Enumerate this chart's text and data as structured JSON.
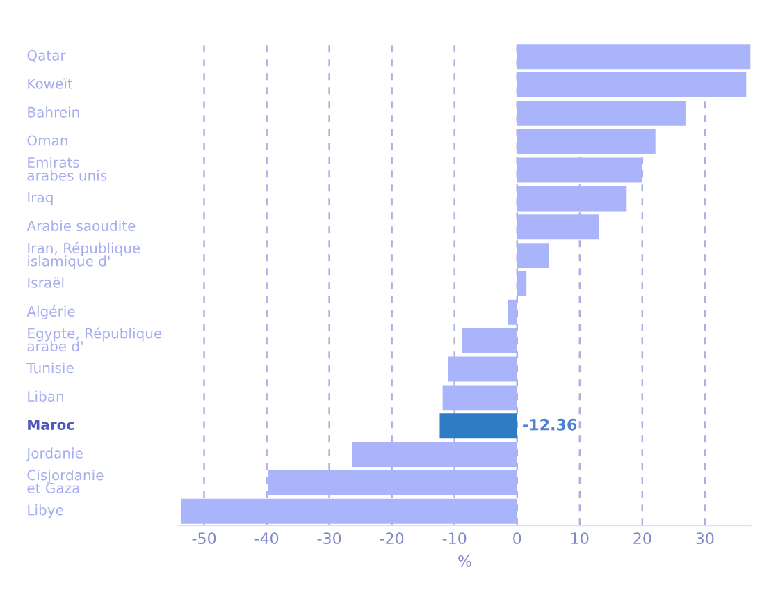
{
  "chart_data": {
    "type": "bar",
    "orientation": "horizontal",
    "xlabel": "%",
    "categories": [
      "Qatar",
      "Koweït",
      "Bahrein",
      "Oman",
      "Emirats arabes unis",
      "Iraq",
      "Arabie saoudite",
      "Iran, République islamique d'",
      "Israël",
      "Algérie",
      "Egypte, République arabe d'",
      "Tunisie",
      "Liban",
      "Maroc",
      "Jordanie",
      "Cisjordanie et Gaza",
      "Libye"
    ],
    "values": [
      37.3,
      36.6,
      26.9,
      22.1,
      20.0,
      17.5,
      13.1,
      5.1,
      1.5,
      -1.5,
      -8.8,
      -11.0,
      -11.9,
      -12.36,
      -26.3,
      -39.8,
      -53.7
    ],
    "colors": [
      "#aab4fb",
      "#aab4fb",
      "#aab4fb",
      "#aab4fb",
      "#aab4fb",
      "#aab4fb",
      "#aab4fb",
      "#aab4fb",
      "#aab4fb",
      "#aab4fb",
      "#aab4fb",
      "#aab4fb",
      "#aab4fb",
      "#2f7bc4",
      "#aab4fb",
      "#aab4fb",
      "#aab4fb"
    ],
    "value_labels": [
      null,
      null,
      null,
      null,
      null,
      null,
      null,
      null,
      null,
      null,
      null,
      null,
      null,
      "-12.36",
      null,
      null,
      null
    ],
    "xlim": [
      -54,
      37.3
    ],
    "xticks": [
      -50,
      -40,
      -30,
      -20,
      -10,
      0,
      10,
      20,
      30
    ],
    "grid": "x"
  }
}
